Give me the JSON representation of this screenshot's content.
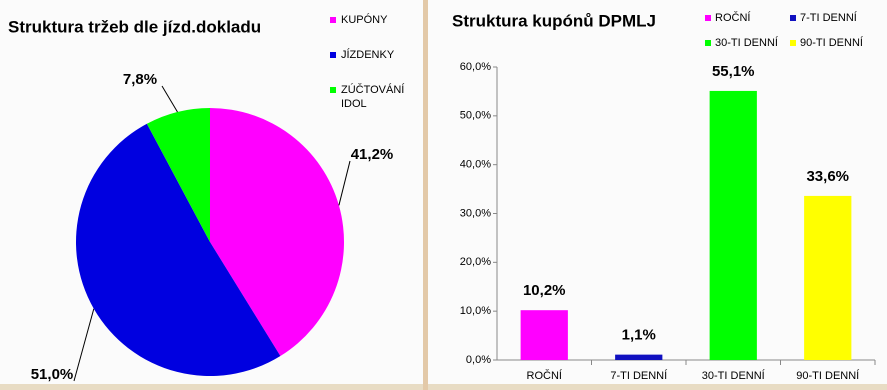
{
  "chart_data": [
    {
      "type": "pie",
      "title": "Struktura tržeb dle jízd.dokladu",
      "categories": [
        "KUPÓNY",
        "JÍZDENKY",
        "ZÚČTOVÁNÍ IDOL"
      ],
      "values": [
        41.2,
        51.0,
        7.8
      ],
      "value_labels": [
        "41,2%",
        "51,0%",
        "7,8%"
      ],
      "colors": [
        "#ff00ff",
        "#0000e0",
        "#00ff00"
      ],
      "legend": "right"
    },
    {
      "type": "bar",
      "title": "Struktura kupónů DPMLJ",
      "categories": [
        "ROČNÍ",
        "7-TI DENNÍ",
        "30-TI DENNÍ",
        "90-TI DENNÍ"
      ],
      "values": [
        10.2,
        1.1,
        55.1,
        33.6
      ],
      "value_labels": [
        "10,2%",
        "1,1%",
        "55,1%",
        "33,6%"
      ],
      "colors": [
        "#ff00ff",
        "#1010c0",
        "#00ff00",
        "#ffff00"
      ],
      "ylim": [
        0,
        60
      ],
      "yticks": [
        {
          "value": 0,
          "label": "0,0%"
        },
        {
          "value": 10,
          "label": "10,0%"
        },
        {
          "value": 20,
          "label": "20,0%"
        },
        {
          "value": 30,
          "label": "30,0%"
        },
        {
          "value": 40,
          "label": "40,0%"
        },
        {
          "value": 50,
          "label": "50,0%"
        },
        {
          "value": 60,
          "label": "60,0%"
        }
      ],
      "grid": false,
      "legend": "top"
    }
  ]
}
